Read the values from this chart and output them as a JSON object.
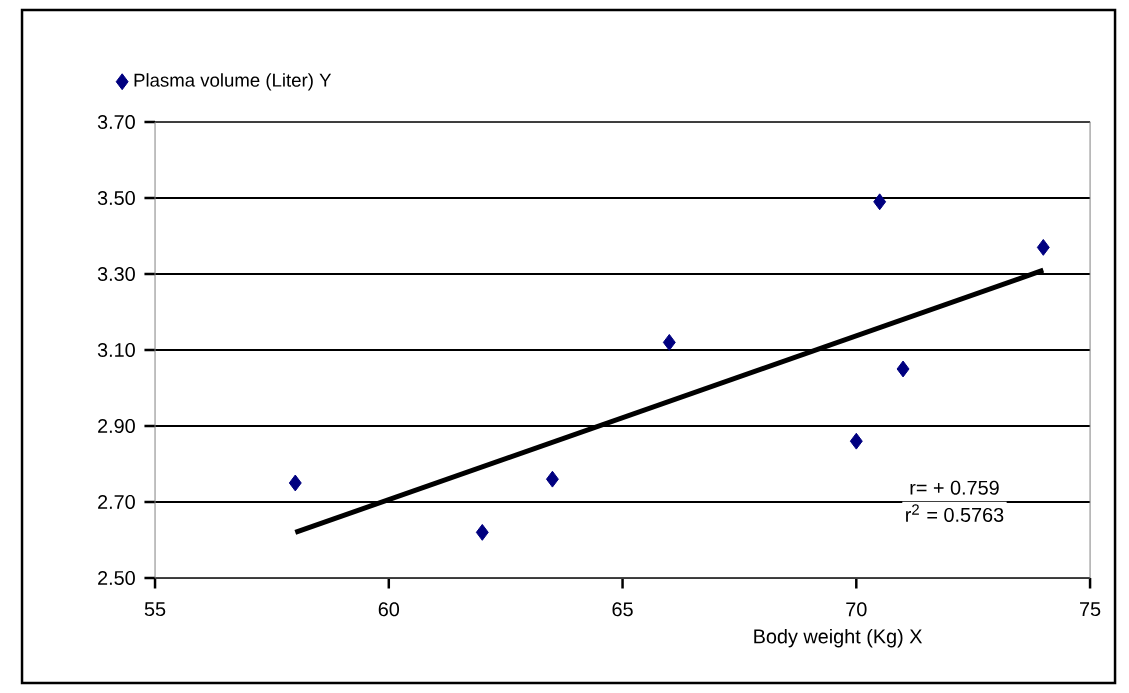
{
  "chart_data": {
    "type": "scatter",
    "xlabel": "Body weight (Kg)  X",
    "x": [
      58,
      62,
      63.5,
      66,
      70,
      70.5,
      71,
      74
    ],
    "series": [
      {
        "name": "Plasma volume (Liter) Y",
        "color": "#000080",
        "marker": "diamond",
        "values": [
          2.75,
          2.62,
          2.76,
          3.12,
          2.86,
          3.49,
          3.05,
          3.37
        ]
      },
      {
        "type": "line",
        "color": "#000000",
        "marker": "none",
        "line_style": "solid",
        "x": [
          58,
          74
        ],
        "values": [
          2.62,
          3.31
        ]
      }
    ],
    "annotations": [
      "r= + 0.759",
      "r$^{2}$ = 0.5763"
    ],
    "xlim": [
      55,
      75
    ],
    "xticks": [
      55,
      60,
      65,
      70,
      75
    ],
    "ylim": [
      2.5,
      3.7
    ],
    "yticks": [
      {
        "value": 2.5,
        "label": "2.50"
      },
      {
        "value": 2.7,
        "label": "2.70"
      },
      {
        "value": 2.9,
        "label": "2.90"
      },
      {
        "value": 3.1,
        "label": "3.10"
      },
      {
        "value": 3.3,
        "label": "3.30"
      },
      {
        "value": 3.5,
        "label": "3.50"
      },
      {
        "value": 3.7,
        "label": "3.70"
      }
    ],
    "grid": "y",
    "legend": "top left"
  }
}
